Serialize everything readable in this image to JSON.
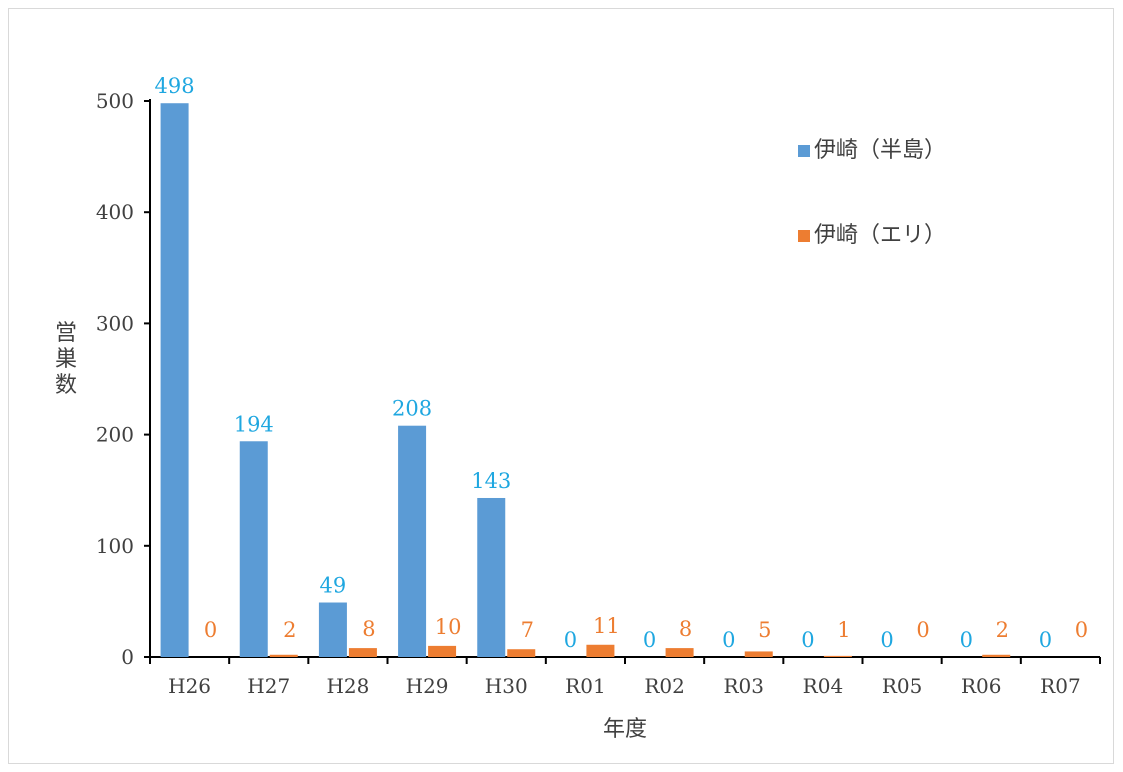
{
  "chart_data": {
    "type": "bar",
    "categories": [
      "H26",
      "H27",
      "H28",
      "H29",
      "H30",
      "R01",
      "R02",
      "R03",
      "R04",
      "R05",
      "R06",
      "R07"
    ],
    "series": [
      {
        "name": "伊崎（半島）",
        "values": [
          498,
          194,
          49,
          208,
          143,
          0,
          0,
          0,
          0,
          0,
          0,
          0
        ],
        "bar_color": "#5b9bd5",
        "label_color": "#1fa7e0"
      },
      {
        "name": "伊崎（エリ）",
        "values": [
          0,
          2,
          8,
          10,
          7,
          11,
          8,
          5,
          1,
          0,
          2,
          0
        ],
        "bar_color": "#ed7d31",
        "label_color": "#ed7d31"
      }
    ],
    "xlabel": "年度",
    "ylabel": "営巣数",
    "ylim": [
      0,
      500
    ],
    "yticks": [
      0,
      100,
      200,
      300,
      400,
      500
    ],
    "grid": false,
    "legend_position": "top-right",
    "data_labels": true
  }
}
